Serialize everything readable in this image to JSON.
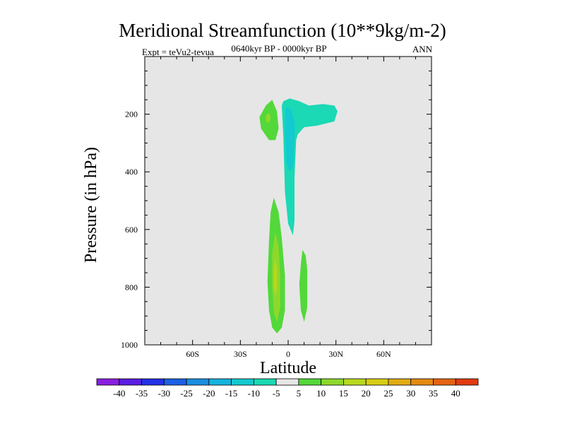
{
  "chart_data": {
    "type": "heatmap",
    "title": "Meridional Streamfunction (10**9kg/m-2)",
    "subtitle": "0640kyr BP - 0000kyr BP",
    "left_label": "Expt = teVu2-tevua",
    "right_label": "ANN",
    "xlabel": "Latitude",
    "ylabel": "Pressure (in hPa)",
    "xlim": [
      -90,
      90
    ],
    "ylim": [
      0,
      1000
    ],
    "y_inverted": true,
    "x_ticks": [
      {
        "value": -60,
        "label": "60S"
      },
      {
        "value": -30,
        "label": "30S"
      },
      {
        "value": 0,
        "label": "0"
      },
      {
        "value": 30,
        "label": "30N"
      },
      {
        "value": 60,
        "label": "60N"
      }
    ],
    "y_ticks": [
      {
        "value": 200,
        "label": "200"
      },
      {
        "value": 400,
        "label": "400"
      },
      {
        "value": 600,
        "label": "600"
      },
      {
        "value": 800,
        "label": "800"
      },
      {
        "value": 1000,
        "label": "1000"
      }
    ],
    "background_color": "#e6e6e6",
    "colorbar": {
      "labels": [
        "-40",
        "-35",
        "-30",
        "-25",
        "-20",
        "-15",
        "-10",
        "-5",
        "5",
        "10",
        "15",
        "20",
        "25",
        "30",
        "35",
        "40"
      ],
      "colors": [
        "#8a1fe0",
        "#5a1ee0",
        "#2430e6",
        "#1c60e4",
        "#1a8ee0",
        "#14b4dc",
        "#12cad0",
        "#1ad9b4",
        "#e6e6e6",
        "#53d83a",
        "#8ed82c",
        "#b8d91e",
        "#d8cd14",
        "#e2ac12",
        "#e48a12",
        "#e46414",
        "#e23a12"
      ]
    },
    "contour_regions": [
      {
        "name": "sh-upper-positive-cell",
        "level": 10,
        "color": "#53d83a",
        "polygon": [
          [
            -14,
            170
          ],
          [
            -10,
            150
          ],
          [
            -7,
            190
          ],
          [
            -6,
            250
          ],
          [
            -8,
            290
          ],
          [
            -12,
            290
          ],
          [
            -17,
            250
          ],
          [
            -18,
            210
          ]
        ]
      },
      {
        "name": "sh-upper-positive-core",
        "level": 15,
        "color": "#8ed82c",
        "polygon": [
          [
            -14,
            205
          ],
          [
            -12,
            195
          ],
          [
            -11,
            210
          ],
          [
            -12,
            230
          ],
          [
            -14,
            225
          ]
        ]
      },
      {
        "name": "upper-negative-cell",
        "level": -5,
        "color": "#1ad9b4",
        "polygon": [
          [
            -3,
            155
          ],
          [
            1,
            145
          ],
          [
            7,
            155
          ],
          [
            13,
            170
          ],
          [
            22,
            165
          ],
          [
            29,
            170
          ],
          [
            31,
            190
          ],
          [
            29,
            225
          ],
          [
            18,
            240
          ],
          [
            10,
            245
          ],
          [
            6,
            270
          ],
          [
            5,
            290
          ],
          [
            4,
            420
          ],
          [
            4,
            570
          ],
          [
            3,
            620
          ],
          [
            0,
            580
          ],
          [
            -2,
            470
          ],
          [
            -3,
            280
          ],
          [
            -4,
            170
          ]
        ]
      },
      {
        "name": "upper-negative-core",
        "level": -10,
        "color": "#12cad0",
        "polygon": [
          [
            -1,
            175
          ],
          [
            2,
            185
          ],
          [
            4,
            230
          ],
          [
            4,
            300
          ],
          [
            3,
            380
          ],
          [
            1,
            400
          ],
          [
            -1,
            370
          ],
          [
            -2,
            260
          ],
          [
            -2,
            200
          ]
        ]
      },
      {
        "name": "sh-lower-positive-cell",
        "level": 10,
        "color": "#53d83a",
        "polygon": [
          [
            -11,
            540
          ],
          [
            -9,
            490
          ],
          [
            -6,
            540
          ],
          [
            -4,
            630
          ],
          [
            -2,
            760
          ],
          [
            -2,
            880
          ],
          [
            -4,
            940
          ],
          [
            -7,
            960
          ],
          [
            -10,
            940
          ],
          [
            -12,
            880
          ],
          [
            -13,
            780
          ],
          [
            -12,
            640
          ]
        ]
      },
      {
        "name": "sh-lower-positive-core",
        "level": 15,
        "color": "#8ed82c",
        "polygon": [
          [
            -8,
            610
          ],
          [
            -6,
            660
          ],
          [
            -5,
            760
          ],
          [
            -5,
            870
          ],
          [
            -7,
            920
          ],
          [
            -9,
            890
          ],
          [
            -10,
            780
          ],
          [
            -10,
            680
          ]
        ]
      },
      {
        "name": "sh-lower-positive-max",
        "level": 20,
        "color": "#b8d91e",
        "polygon": [
          [
            -8,
            700
          ],
          [
            -7,
            740
          ],
          [
            -7,
            800
          ],
          [
            -8,
            830
          ],
          [
            -9,
            800
          ],
          [
            -9,
            740
          ]
        ]
      },
      {
        "name": "nh-lower-positive-cell",
        "level": 10,
        "color": "#53d83a",
        "polygon": [
          [
            8,
            720
          ],
          [
            9,
            670
          ],
          [
            11,
            690
          ],
          [
            12,
            740
          ],
          [
            12,
            870
          ],
          [
            10,
            920
          ],
          [
            8,
            880
          ],
          [
            7,
            790
          ]
        ]
      }
    ]
  }
}
